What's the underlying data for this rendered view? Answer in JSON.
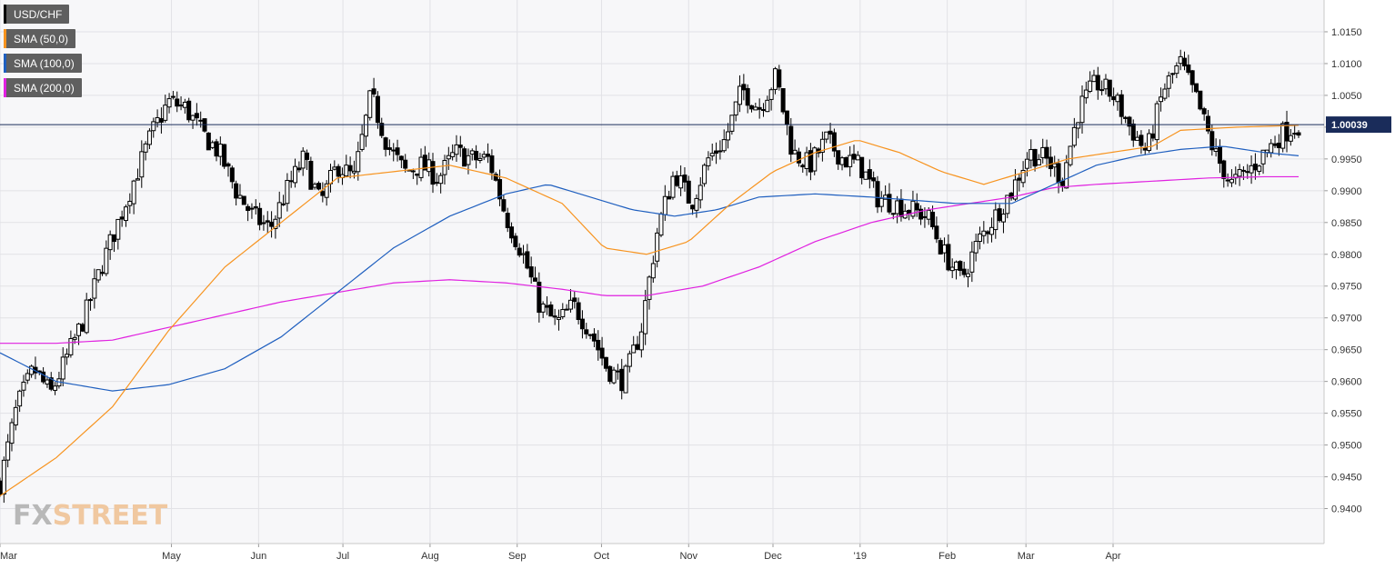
{
  "legend": [
    {
      "label": "USD/CHF",
      "color": "#000000"
    },
    {
      "label": "SMA (50,0)",
      "color": "#f7931e"
    },
    {
      "label": "SMA (100,0)",
      "color": "#1f5fbf"
    },
    {
      "label": "SMA (200,0)",
      "color": "#e020e0"
    }
  ],
  "watermark": {
    "part1": "FX",
    "part2": "STREET"
  },
  "chart_data": {
    "type": "candlestick",
    "title": "",
    "xlabel": "",
    "ylabel": "",
    "ylim": [
      0.9345,
      1.02
    ],
    "y_ticks": [
      "1.0150",
      "1.0100",
      "1.0050",
      "1.0000",
      "0.9950",
      "0.9900",
      "0.9850",
      "0.9800",
      "0.9750",
      "0.9700",
      "0.9650",
      "0.9600",
      "0.9550",
      "0.9500",
      "0.9450",
      "0.9400"
    ],
    "x_ticks": [
      "Mar",
      "May",
      "Jun",
      "Jul",
      "Aug",
      "Sep",
      "Oct",
      "Nov",
      "Dec",
      "'19",
      "Feb",
      "Mar",
      "Apr"
    ],
    "x_tick_days": [
      0,
      61,
      92,
      122,
      153,
      184,
      214,
      245,
      275,
      306,
      337,
      365,
      396
    ],
    "last_price": "1.00039",
    "price_line": 1.0004,
    "grid": true,
    "legend_position": "top-left",
    "close_anchors": [
      [
        0,
        0.944
      ],
      [
        6,
        0.956
      ],
      [
        12,
        0.962
      ],
      [
        18,
        0.958
      ],
      [
        24,
        0.964
      ],
      [
        30,
        0.97
      ],
      [
        36,
        0.978
      ],
      [
        42,
        0.985
      ],
      [
        48,
        0.992
      ],
      [
        54,
        0.999
      ],
      [
        60,
        1.004
      ],
      [
        66,
        1.003
      ],
      [
        72,
        0.999
      ],
      [
        78,
        0.996
      ],
      [
        84,
        0.99
      ],
      [
        90,
        0.986
      ],
      [
        96,
        0.984
      ],
      [
        102,
        0.99
      ],
      [
        108,
        0.995
      ],
      [
        114,
        0.988
      ],
      [
        120,
        0.994
      ],
      [
        126,
        0.992
      ],
      [
        132,
        1.005
      ],
      [
        138,
        0.997
      ],
      [
        144,
        0.993
      ],
      [
        150,
        0.994
      ],
      [
        156,
        0.992
      ],
      [
        162,
        0.996
      ],
      [
        168,
        0.995
      ],
      [
        174,
        0.995
      ],
      [
        180,
        0.986
      ],
      [
        186,
        0.98
      ],
      [
        192,
        0.972
      ],
      [
        198,
        0.969
      ],
      [
        204,
        0.972
      ],
      [
        210,
        0.968
      ],
      [
        216,
        0.962
      ],
      [
        222,
        0.96
      ],
      [
        228,
        0.968
      ],
      [
        234,
        0.984
      ],
      [
        240,
        0.993
      ],
      [
        246,
        0.988
      ],
      [
        252,
        0.995
      ],
      [
        258,
        0.998
      ],
      [
        264,
        1.006
      ],
      [
        270,
        1.003
      ],
      [
        276,
        1.008
      ],
      [
        282,
        0.996
      ],
      [
        288,
        0.994
      ],
      [
        294,
        0.998
      ],
      [
        300,
        0.995
      ],
      [
        306,
        0.994
      ],
      [
        312,
        0.989
      ],
      [
        318,
        0.988
      ],
      [
        324,
        0.987
      ],
      [
        330,
        0.986
      ],
      [
        336,
        0.98
      ],
      [
        342,
        0.976
      ],
      [
        348,
        0.982
      ],
      [
        354,
        0.986
      ],
      [
        360,
        0.99
      ],
      [
        366,
        0.996
      ],
      [
        372,
        0.995
      ],
      [
        378,
        0.992
      ],
      [
        384,
        1.003
      ],
      [
        390,
        1.007
      ],
      [
        396,
        1.005
      ],
      [
        402,
        1.0
      ],
      [
        408,
        0.996
      ],
      [
        414,
        1.006
      ],
      [
        420,
        1.01
      ],
      [
        426,
        1.004
      ],
      [
        432,
        0.996
      ],
      [
        438,
        0.991
      ],
      [
        444,
        0.993
      ],
      [
        450,
        0.996
      ],
      [
        456,
        0.999
      ],
      [
        462,
        1.0004
      ]
    ],
    "sma_50": [
      [
        0,
        0.942
      ],
      [
        20,
        0.948
      ],
      [
        40,
        0.956
      ],
      [
        60,
        0.968
      ],
      [
        80,
        0.978
      ],
      [
        100,
        0.985
      ],
      [
        120,
        0.992
      ],
      [
        140,
        0.993
      ],
      [
        160,
        0.994
      ],
      [
        180,
        0.992
      ],
      [
        200,
        0.988
      ],
      [
        215,
        0.981
      ],
      [
        230,
        0.98
      ],
      [
        245,
        0.982
      ],
      [
        260,
        0.988
      ],
      [
        275,
        0.993
      ],
      [
        290,
        0.996
      ],
      [
        305,
        0.998
      ],
      [
        320,
        0.996
      ],
      [
        335,
        0.993
      ],
      [
        350,
        0.991
      ],
      [
        365,
        0.993
      ],
      [
        380,
        0.995
      ],
      [
        395,
        0.996
      ],
      [
        410,
        0.997
      ],
      [
        420,
        0.9995
      ],
      [
        440,
        1.0
      ],
      [
        462,
        1.0003
      ]
    ],
    "sma_100": [
      [
        0,
        0.9645
      ],
      [
        20,
        0.96
      ],
      [
        40,
        0.9585
      ],
      [
        60,
        0.9595
      ],
      [
        80,
        0.962
      ],
      [
        100,
        0.967
      ],
      [
        120,
        0.974
      ],
      [
        140,
        0.981
      ],
      [
        160,
        0.986
      ],
      [
        180,
        0.9895
      ],
      [
        195,
        0.991
      ],
      [
        210,
        0.989
      ],
      [
        225,
        0.987
      ],
      [
        240,
        0.986
      ],
      [
        255,
        0.987
      ],
      [
        270,
        0.989
      ],
      [
        290,
        0.9895
      ],
      [
        310,
        0.989
      ],
      [
        325,
        0.9885
      ],
      [
        340,
        0.988
      ],
      [
        360,
        0.988
      ],
      [
        375,
        0.991
      ],
      [
        390,
        0.994
      ],
      [
        405,
        0.9955
      ],
      [
        420,
        0.9965
      ],
      [
        435,
        0.997
      ],
      [
        450,
        0.996
      ],
      [
        462,
        0.9955
      ]
    ],
    "sma_200": [
      [
        0,
        0.966
      ],
      [
        20,
        0.966
      ],
      [
        40,
        0.9665
      ],
      [
        60,
        0.9685
      ],
      [
        80,
        0.9705
      ],
      [
        100,
        0.9725
      ],
      [
        120,
        0.974
      ],
      [
        140,
        0.9755
      ],
      [
        160,
        0.976
      ],
      [
        180,
        0.9755
      ],
      [
        200,
        0.9745
      ],
      [
        215,
        0.9735
      ],
      [
        230,
        0.9735
      ],
      [
        250,
        0.975
      ],
      [
        270,
        0.978
      ],
      [
        290,
        0.982
      ],
      [
        310,
        0.985
      ],
      [
        330,
        0.987
      ],
      [
        345,
        0.988
      ],
      [
        360,
        0.989
      ],
      [
        375,
        0.9905
      ],
      [
        390,
        0.991
      ],
      [
        410,
        0.9915
      ],
      [
        430,
        0.992
      ],
      [
        450,
        0.9922
      ],
      [
        462,
        0.9922
      ]
    ]
  }
}
